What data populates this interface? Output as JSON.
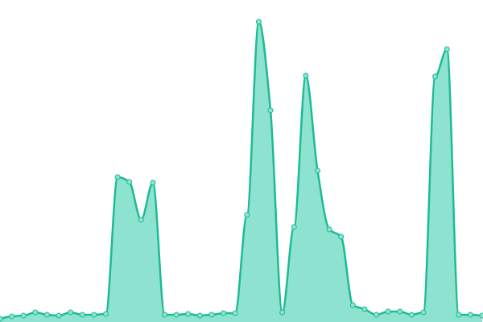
{
  "chart_data": {
    "type": "area",
    "values": [
      4,
      7,
      8,
      12,
      9,
      8,
      12,
      9,
      9,
      10,
      180,
      174,
      127,
      173,
      9,
      9,
      10,
      8,
      9,
      11,
      11,
      133,
      373,
      263,
      12,
      118,
      306,
      188,
      115,
      106,
      21,
      16,
      9,
      13,
      13,
      9,
      12,
      305,
      339,
      9,
      9,
      8
    ],
    "ylim": [
      0,
      400
    ],
    "color": "#1dbb94",
    "fill": "#8de3d0"
  }
}
